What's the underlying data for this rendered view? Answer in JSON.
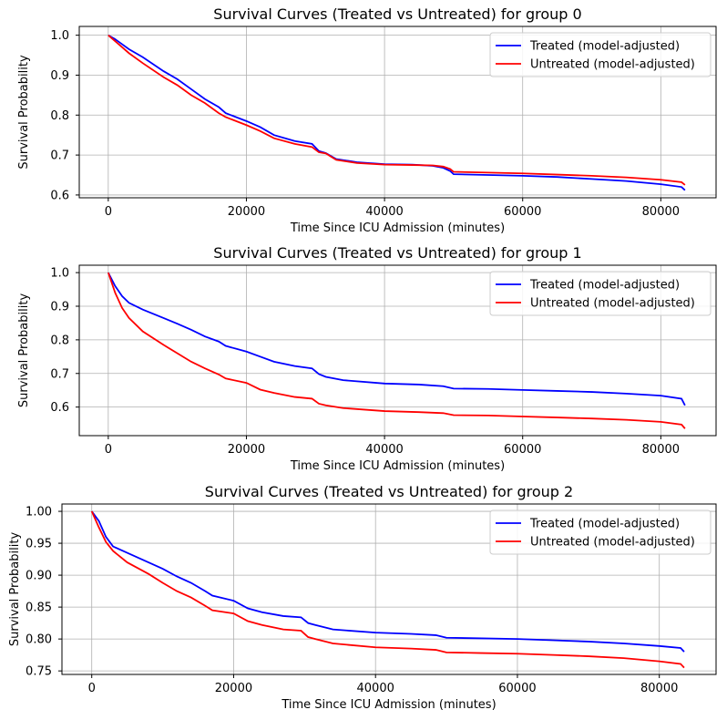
{
  "chart_data": [
    {
      "type": "line",
      "title": "Survival Curves (Treated vs Untreated) for group 0",
      "xlabel": "Time Since ICU Admission (minutes)",
      "ylabel": "Survival Probability",
      "xlim": [
        -4200,
        88000
      ],
      "ylim": [
        0.593,
        1.022
      ],
      "xticks": [
        0,
        20000,
        40000,
        60000,
        80000
      ],
      "xtick_labels": [
        "0",
        "20000",
        "40000",
        "60000",
        "80000"
      ],
      "yticks": [
        0.6,
        0.7,
        0.8,
        0.9,
        1.0
      ],
      "ytick_labels": [
        "0.6",
        "0.7",
        "0.8",
        "0.9",
        "1.0"
      ],
      "grid": true,
      "legend_position": "top-right",
      "series": [
        {
          "name": "Treated (model-adjusted)",
          "color": "#0000ff",
          "x": [
            0,
            1000,
            3000,
            5000,
            8000,
            10000,
            12000,
            14000,
            16000,
            17000,
            20000,
            22000,
            24000,
            27000,
            29500,
            30500,
            31500,
            33000,
            36000,
            40000,
            44000,
            47000,
            48500,
            49500,
            50000,
            55000,
            60000,
            65000,
            70000,
            75000,
            80000,
            83000,
            83500
          ],
          "y": [
            1.0,
            0.99,
            0.965,
            0.945,
            0.91,
            0.89,
            0.865,
            0.84,
            0.82,
            0.805,
            0.785,
            0.77,
            0.75,
            0.735,
            0.728,
            0.71,
            0.705,
            0.69,
            0.682,
            0.677,
            0.676,
            0.673,
            0.668,
            0.66,
            0.652,
            0.65,
            0.648,
            0.645,
            0.64,
            0.635,
            0.627,
            0.62,
            0.612
          ]
        },
        {
          "name": "Untreated (model-adjusted)",
          "color": "#ff0000",
          "x": [
            0,
            1000,
            3000,
            5000,
            8000,
            10000,
            12000,
            14000,
            16000,
            17000,
            20000,
            22000,
            24000,
            27000,
            29500,
            30500,
            31500,
            33000,
            36000,
            40000,
            44000,
            47000,
            48500,
            49500,
            50000,
            55000,
            60000,
            65000,
            70000,
            75000,
            80000,
            83000,
            83500
          ],
          "y": [
            1.0,
            0.985,
            0.955,
            0.93,
            0.895,
            0.875,
            0.85,
            0.83,
            0.805,
            0.795,
            0.775,
            0.76,
            0.742,
            0.728,
            0.72,
            0.707,
            0.704,
            0.688,
            0.68,
            0.676,
            0.675,
            0.674,
            0.671,
            0.665,
            0.658,
            0.656,
            0.654,
            0.651,
            0.648,
            0.644,
            0.638,
            0.632,
            0.625
          ]
        }
      ]
    },
    {
      "type": "line",
      "title": "Survival Curves (Treated vs Untreated) for group 1",
      "xlabel": "Time Since ICU Admission (minutes)",
      "ylabel": "Survival Probability",
      "xlim": [
        -4200,
        88000
      ],
      "ylim": [
        0.515,
        1.022
      ],
      "xticks": [
        0,
        20000,
        40000,
        60000,
        80000
      ],
      "xtick_labels": [
        "0",
        "20000",
        "40000",
        "60000",
        "80000"
      ],
      "yticks": [
        0.6,
        0.7,
        0.8,
        0.9,
        1.0
      ],
      "ytick_labels": [
        "0.6",
        "0.7",
        "0.8",
        "0.9",
        "1.0"
      ],
      "grid": true,
      "legend_position": "top-right",
      "series": [
        {
          "name": "Treated (model-adjusted)",
          "color": "#0000ff",
          "x": [
            0,
            1000,
            2000,
            3000,
            5000,
            8000,
            10000,
            12000,
            14000,
            16000,
            17000,
            20000,
            22000,
            24000,
            27000,
            29500,
            30500,
            31500,
            34000,
            40000,
            45000,
            48500,
            50000,
            55000,
            60000,
            65000,
            70000,
            75000,
            80000,
            83000,
            83500
          ],
          "y": [
            1.0,
            0.96,
            0.93,
            0.91,
            0.89,
            0.865,
            0.848,
            0.83,
            0.81,
            0.795,
            0.782,
            0.765,
            0.75,
            0.735,
            0.722,
            0.715,
            0.698,
            0.69,
            0.68,
            0.67,
            0.667,
            0.662,
            0.655,
            0.654,
            0.651,
            0.648,
            0.645,
            0.64,
            0.634,
            0.625,
            0.605
          ]
        },
        {
          "name": "Untreated (model-adjusted)",
          "color": "#ff0000",
          "x": [
            0,
            1000,
            2000,
            3000,
            5000,
            8000,
            10000,
            12000,
            14000,
            16000,
            17000,
            20000,
            22000,
            24000,
            27000,
            29500,
            30500,
            31500,
            34000,
            40000,
            45000,
            48500,
            50000,
            55000,
            60000,
            65000,
            70000,
            75000,
            80000,
            83000,
            83500
          ],
          "y": [
            1.0,
            0.94,
            0.895,
            0.865,
            0.825,
            0.785,
            0.76,
            0.735,
            0.715,
            0.697,
            0.685,
            0.672,
            0.652,
            0.642,
            0.63,
            0.625,
            0.61,
            0.605,
            0.597,
            0.588,
            0.585,
            0.582,
            0.576,
            0.575,
            0.572,
            0.569,
            0.566,
            0.562,
            0.556,
            0.548,
            0.536
          ]
        }
      ]
    },
    {
      "type": "line",
      "title": "Survival Curves (Treated vs Untreated) for group 2",
      "xlabel": "Time Since ICU Admission (minutes)",
      "ylabel": "Survival Probability",
      "xlim": [
        -4200,
        88000
      ],
      "ylim": [
        0.7445,
        1.0115
      ],
      "xticks": [
        0,
        20000,
        40000,
        60000,
        80000
      ],
      "xtick_labels": [
        "0",
        "20000",
        "40000",
        "60000",
        "80000"
      ],
      "yticks": [
        0.75,
        0.8,
        0.85,
        0.9,
        0.95,
        1.0
      ],
      "ytick_labels": [
        "0.75",
        "0.80",
        "0.85",
        "0.90",
        "0.95",
        "1.00"
      ],
      "grid": true,
      "legend_position": "top-right",
      "series": [
        {
          "name": "Treated (model-adjusted)",
          "color": "#0000ff",
          "x": [
            0,
            1000,
            2000,
            3000,
            5000,
            8000,
            10000,
            12000,
            14000,
            16000,
            17000,
            20000,
            22000,
            24000,
            27000,
            29500,
            30500,
            31500,
            34000,
            40000,
            45000,
            48500,
            50000,
            55000,
            60000,
            65000,
            70000,
            75000,
            80000,
            83000,
            83500
          ],
          "y": [
            1.0,
            0.985,
            0.96,
            0.945,
            0.935,
            0.92,
            0.91,
            0.898,
            0.888,
            0.875,
            0.868,
            0.86,
            0.848,
            0.842,
            0.836,
            0.834,
            0.825,
            0.822,
            0.815,
            0.81,
            0.808,
            0.806,
            0.802,
            0.801,
            0.8,
            0.798,
            0.796,
            0.793,
            0.789,
            0.786,
            0.78
          ]
        },
        {
          "name": "Untreated (model-adjusted)",
          "color": "#ff0000",
          "x": [
            0,
            1000,
            2000,
            3000,
            5000,
            8000,
            10000,
            12000,
            14000,
            16000,
            17000,
            20000,
            22000,
            24000,
            27000,
            29500,
            30500,
            31500,
            34000,
            40000,
            45000,
            48500,
            50000,
            55000,
            60000,
            65000,
            70000,
            75000,
            80000,
            83000,
            83500
          ],
          "y": [
            1.0,
            0.975,
            0.952,
            0.938,
            0.92,
            0.902,
            0.888,
            0.875,
            0.865,
            0.852,
            0.845,
            0.84,
            0.828,
            0.822,
            0.815,
            0.813,
            0.803,
            0.8,
            0.793,
            0.787,
            0.785,
            0.783,
            0.779,
            0.778,
            0.777,
            0.775,
            0.773,
            0.77,
            0.765,
            0.761,
            0.755
          ]
        }
      ]
    }
  ]
}
